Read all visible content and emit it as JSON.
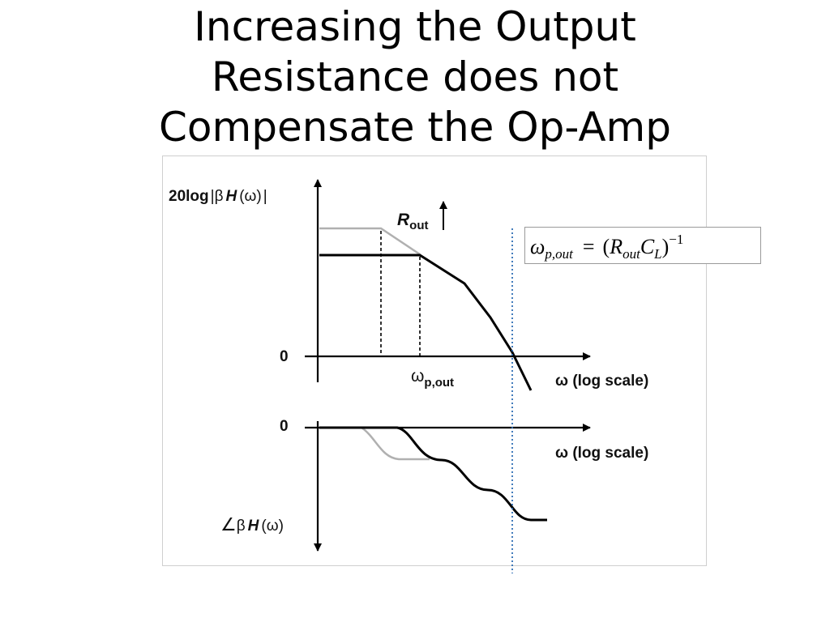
{
  "slide": {
    "title_lines": [
      "Increasing the Output",
      "Resistance does not",
      "Compensate the Op-Amp"
    ]
  },
  "magnitude_plot": {
    "ylabel_prefix": "20log",
    "ylabel_beta": "β",
    "ylabel_H": "H",
    "ylabel_omega": "(ω)",
    "zero_label": "0",
    "rout_label": "R",
    "rout_subscript": "out",
    "pole_label": "ω",
    "pole_subscript": "p,out",
    "xlabel": "ω (log scale)"
  },
  "phase_plot": {
    "zero_label": "0",
    "xlabel": "ω (log scale)",
    "ylabel_beta": "β",
    "ylabel_H": "H",
    "ylabel_omega": "(ω)"
  },
  "formula": {
    "lhs_symbol": "ω",
    "lhs_subscript": "p,out",
    "equals": "=",
    "open_paren": "(",
    "r_symbol": "R",
    "r_subscript": "out",
    "c_symbol": "C",
    "c_subscript": "L",
    "close_paren": ")",
    "exponent": "−1"
  },
  "colors": {
    "curve": "#000000",
    "previous_curve": "#b0b0b0",
    "marker_line": "#2e6db4"
  }
}
